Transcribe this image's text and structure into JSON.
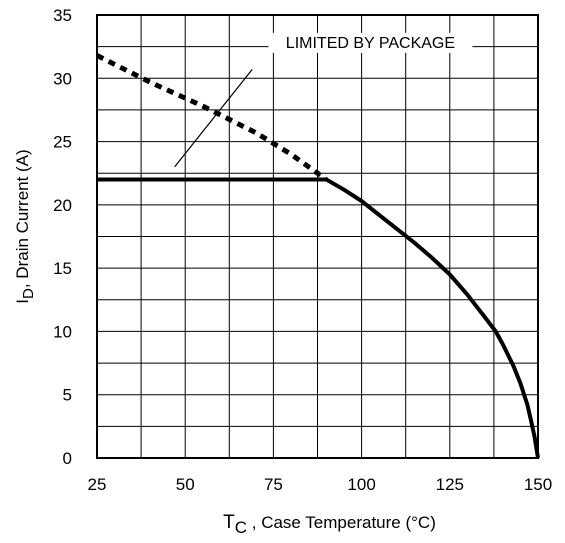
{
  "chart_data": {
    "type": "line",
    "xlabel": {
      "symbol": "T",
      "subscript": "C",
      "text": " , Case Temperature (°C)"
    },
    "ylabel": {
      "symbol": "I",
      "subscript": "D",
      "text": ",  Drain Current  (A)"
    },
    "xlim": [
      25,
      150
    ],
    "ylim": [
      0,
      35
    ],
    "x_ticks": [
      25,
      50,
      75,
      100,
      125,
      150
    ],
    "y_ticks": [
      0,
      5,
      10,
      15,
      20,
      25,
      30,
      35
    ],
    "grid": true,
    "grid_x_step": 12.5,
    "grid_y_step": 2.5,
    "series": [
      {
        "style": "solid",
        "x": [
          25,
          90,
          95,
          100,
          105,
          110,
          115,
          120,
          125,
          130,
          135,
          138,
          140,
          143,
          145,
          147,
          148,
          149,
          150
        ],
        "y": [
          22,
          22,
          21.2,
          20.3,
          19.2,
          18.1,
          17.0,
          15.8,
          14.5,
          12.9,
          11.1,
          10.0,
          9.0,
          7.3,
          5.9,
          4.2,
          3.0,
          1.7,
          0
        ]
      },
      {
        "style": "dashed",
        "x": [
          25,
          40,
          55,
          70,
          80,
          90
        ],
        "y": [
          31.8,
          29.7,
          27.8,
          25.7,
          24.0,
          22.0
        ]
      }
    ],
    "annotations": [
      {
        "text": "LIMITED BY PACKAGE",
        "anchor_x": 102.5,
        "anchor_y": 32.4,
        "leader": {
          "x1": 69,
          "y1": 30.7,
          "x2": 47,
          "y2": 23.0
        }
      }
    ]
  }
}
